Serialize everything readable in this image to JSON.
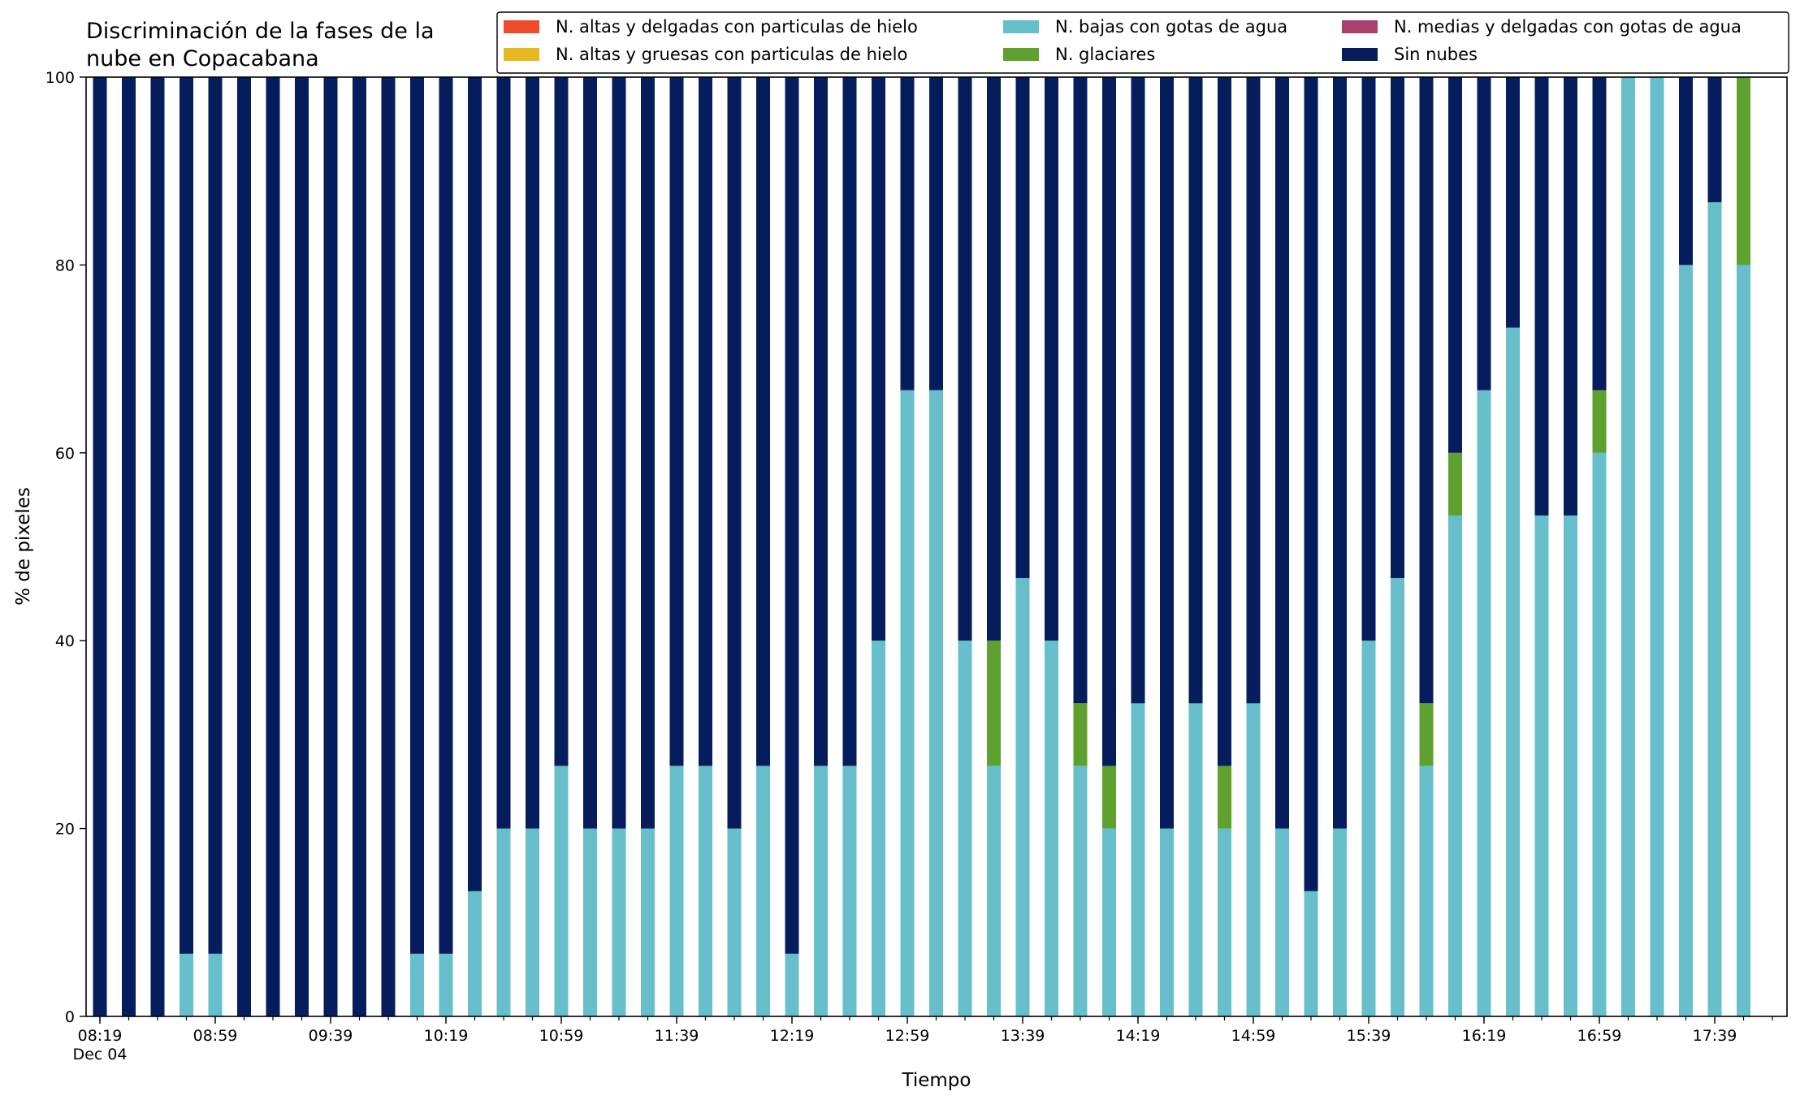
{
  "chart_data": {
    "type": "bar",
    "stacked": true,
    "title": "Discriminación de la fases de la\nnube en Copacabana",
    "xlabel": "Tiempo",
    "ylabel": "% de pixeles",
    "ylim": [
      0,
      100
    ],
    "y_ticks": [
      "0",
      "20",
      "40",
      "60",
      "80",
      "100"
    ],
    "x_tick_labels": [
      "08:19",
      "08:59",
      "09:39",
      "10:19",
      "10:59",
      "11:39",
      "12:19",
      "12:59",
      "13:39",
      "14:19",
      "14:59",
      "15:39",
      "16:19",
      "16:59",
      "17:39"
    ],
    "x_date_label": "Dec 04",
    "grid": false,
    "legend_position": "top-right",
    "categories": [
      "08:19",
      "08:29",
      "08:39",
      "08:49",
      "08:59",
      "09:09",
      "09:19",
      "09:29",
      "09:39",
      "09:49",
      "09:59",
      "10:09",
      "10:19",
      "10:29",
      "10:39",
      "10:49",
      "10:59",
      "11:09",
      "11:19",
      "11:29",
      "11:39",
      "11:49",
      "11:59",
      "12:09",
      "12:19",
      "12:29",
      "12:39",
      "12:49",
      "12:59",
      "13:09",
      "13:19",
      "13:29",
      "13:39",
      "13:49",
      "13:59",
      "14:09",
      "14:19",
      "14:29",
      "14:39",
      "14:49",
      "14:59",
      "15:09",
      "15:19",
      "15:29",
      "15:39",
      "15:49",
      "15:59",
      "16:09",
      "16:19",
      "16:29",
      "16:39",
      "16:49",
      "16:59",
      "17:09",
      "17:19",
      "17:29",
      "17:39",
      "17:49"
    ],
    "series": [
      {
        "name": "N. altas y delgadas con particulas de hielo",
        "color": "#EE4B2B",
        "values": [
          0,
          0,
          0,
          0,
          0,
          0,
          0,
          0,
          0,
          0,
          0,
          0,
          0,
          0,
          0,
          0,
          0,
          0,
          0,
          0,
          0,
          0,
          0,
          0,
          0,
          0,
          0,
          0,
          0,
          0,
          0,
          0,
          0,
          0,
          0,
          0,
          0,
          0,
          0,
          0,
          0,
          0,
          0,
          0,
          0,
          0,
          0,
          0,
          0,
          0,
          0,
          0,
          0,
          0,
          0,
          0,
          0,
          0
        ]
      },
      {
        "name": "N. altas y gruesas con particulas de hielo",
        "color": "#E6B91E",
        "values": [
          0,
          0,
          0,
          0,
          0,
          0,
          0,
          0,
          0,
          0,
          0,
          0,
          0,
          0,
          0,
          0,
          0,
          0,
          0,
          0,
          0,
          0,
          0,
          0,
          0,
          0,
          0,
          0,
          0,
          0,
          0,
          0,
          0,
          0,
          0,
          0,
          0,
          0,
          0,
          0,
          0,
          0,
          0,
          0,
          0,
          0,
          0,
          0,
          0,
          0,
          0,
          0,
          0,
          0,
          0,
          0,
          0,
          0
        ]
      },
      {
        "name": "N. bajas con gotas de agua",
        "color": "#67BFCB",
        "values": [
          0,
          0,
          0,
          6.67,
          6.67,
          0,
          0,
          0,
          0,
          0,
          0,
          6.67,
          6.67,
          13.33,
          20,
          20,
          26.67,
          20,
          20,
          20,
          26.67,
          26.67,
          20,
          26.67,
          6.67,
          26.67,
          26.67,
          40,
          66.67,
          66.67,
          40,
          26.67,
          46.67,
          40,
          26.67,
          20,
          33.33,
          20,
          33.33,
          20,
          33.33,
          20,
          13.33,
          20,
          40,
          46.67,
          26.67,
          53.33,
          66.67,
          73.33,
          53.33,
          53.33,
          60,
          100,
          100,
          80,
          86.67,
          80
        ]
      },
      {
        "name": "N. glaciares",
        "color": "#5FA12E",
        "values": [
          0,
          0,
          0,
          0,
          0,
          0,
          0,
          0,
          0,
          0,
          0,
          0,
          0,
          0,
          0,
          0,
          0,
          0,
          0,
          0,
          0,
          0,
          0,
          0,
          0,
          0,
          0,
          0,
          0,
          0,
          0,
          13.33,
          0,
          0,
          6.67,
          6.67,
          0,
          0,
          0,
          6.67,
          0,
          0,
          0,
          0,
          0,
          0,
          6.67,
          6.67,
          0,
          0,
          0,
          0,
          6.67,
          0,
          0,
          0,
          0,
          20
        ]
      },
      {
        "name": "N. medias y delgadas con gotas de agua",
        "color": "#A8416F",
        "values": [
          0,
          0,
          0,
          0,
          0,
          0,
          0,
          0,
          0,
          0,
          0,
          0,
          0,
          0,
          0,
          0,
          0,
          0,
          0,
          0,
          0,
          0,
          0,
          0,
          0,
          0,
          0,
          0,
          0,
          0,
          0,
          0,
          0,
          0,
          0,
          0,
          0,
          0,
          0,
          0,
          0,
          0,
          0,
          0,
          0,
          0,
          0,
          0,
          0,
          0,
          0,
          0,
          0,
          0,
          0,
          0,
          0,
          0
        ]
      },
      {
        "name": "Sin nubes",
        "color": "#051D5C",
        "values": [
          100,
          100,
          100,
          93.33,
          93.33,
          100,
          100,
          100,
          100,
          100,
          100,
          93.33,
          93.33,
          86.67,
          80,
          80,
          73.33,
          80,
          80,
          80,
          73.33,
          73.33,
          80,
          73.33,
          93.33,
          73.33,
          73.33,
          60,
          33.33,
          33.33,
          60,
          60,
          53.33,
          60,
          66.67,
          73.33,
          66.67,
          80,
          66.67,
          73.33,
          66.67,
          80,
          86.67,
          80,
          60,
          53.33,
          66.67,
          40,
          33.33,
          26.67,
          46.67,
          46.67,
          33.33,
          0,
          0,
          20,
          13.33,
          0
        ]
      }
    ]
  }
}
